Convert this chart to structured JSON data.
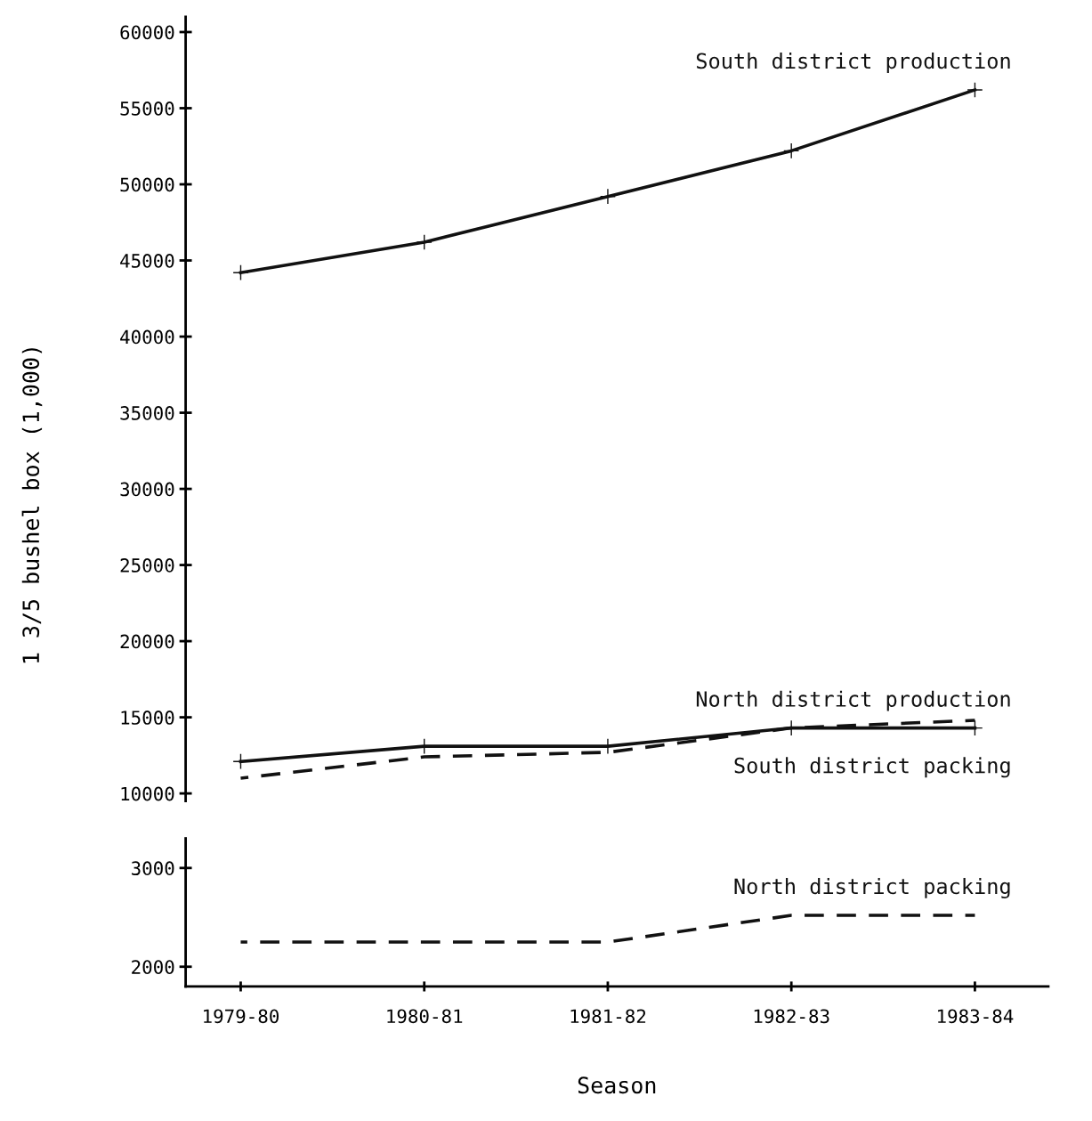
{
  "chart_data": [
    {
      "type": "line",
      "ylabel": "1 3/5 bushel box (1,000)",
      "categories": [
        "1979-80",
        "1980-81",
        "1981-82",
        "1982-83",
        "1983-84"
      ],
      "tick_labels": "y",
      "ylim": [
        9500,
        61000
      ],
      "yticks": [
        10000,
        15000,
        20000,
        25000,
        30000,
        35000,
        40000,
        45000,
        50000,
        55000,
        60000
      ],
      "grid": false,
      "legend": false,
      "series": [
        {
          "name": "South district production",
          "color": "#111111",
          "line_style": "solid",
          "marker": "cross",
          "values": [
            44200,
            46200,
            49200,
            52200,
            56200
          ]
        },
        {
          "name": "North district production",
          "color": "#111111",
          "line_style": "solid",
          "marker": "cross",
          "values": [
            12100,
            13100,
            13100,
            14300,
            14300
          ]
        },
        {
          "name": "South district packing",
          "color": "#111111",
          "line_style": "dashed",
          "marker": "none",
          "values": [
            11000,
            12400,
            12700,
            14300,
            14800
          ]
        }
      ]
    },
    {
      "type": "line",
      "xlabel": "Season",
      "categories": [
        "1979-80",
        "1980-81",
        "1981-82",
        "1982-83",
        "1983-84"
      ],
      "ylim": [
        1800,
        3300
      ],
      "yticks": [
        2000,
        3000
      ],
      "grid": false,
      "legend": false,
      "series": [
        {
          "name": "North district packing",
          "color": "#111111",
          "line_style": "dashed",
          "marker": "none",
          "values": [
            2250,
            2250,
            2250,
            2520,
            2520
          ]
        }
      ]
    }
  ]
}
